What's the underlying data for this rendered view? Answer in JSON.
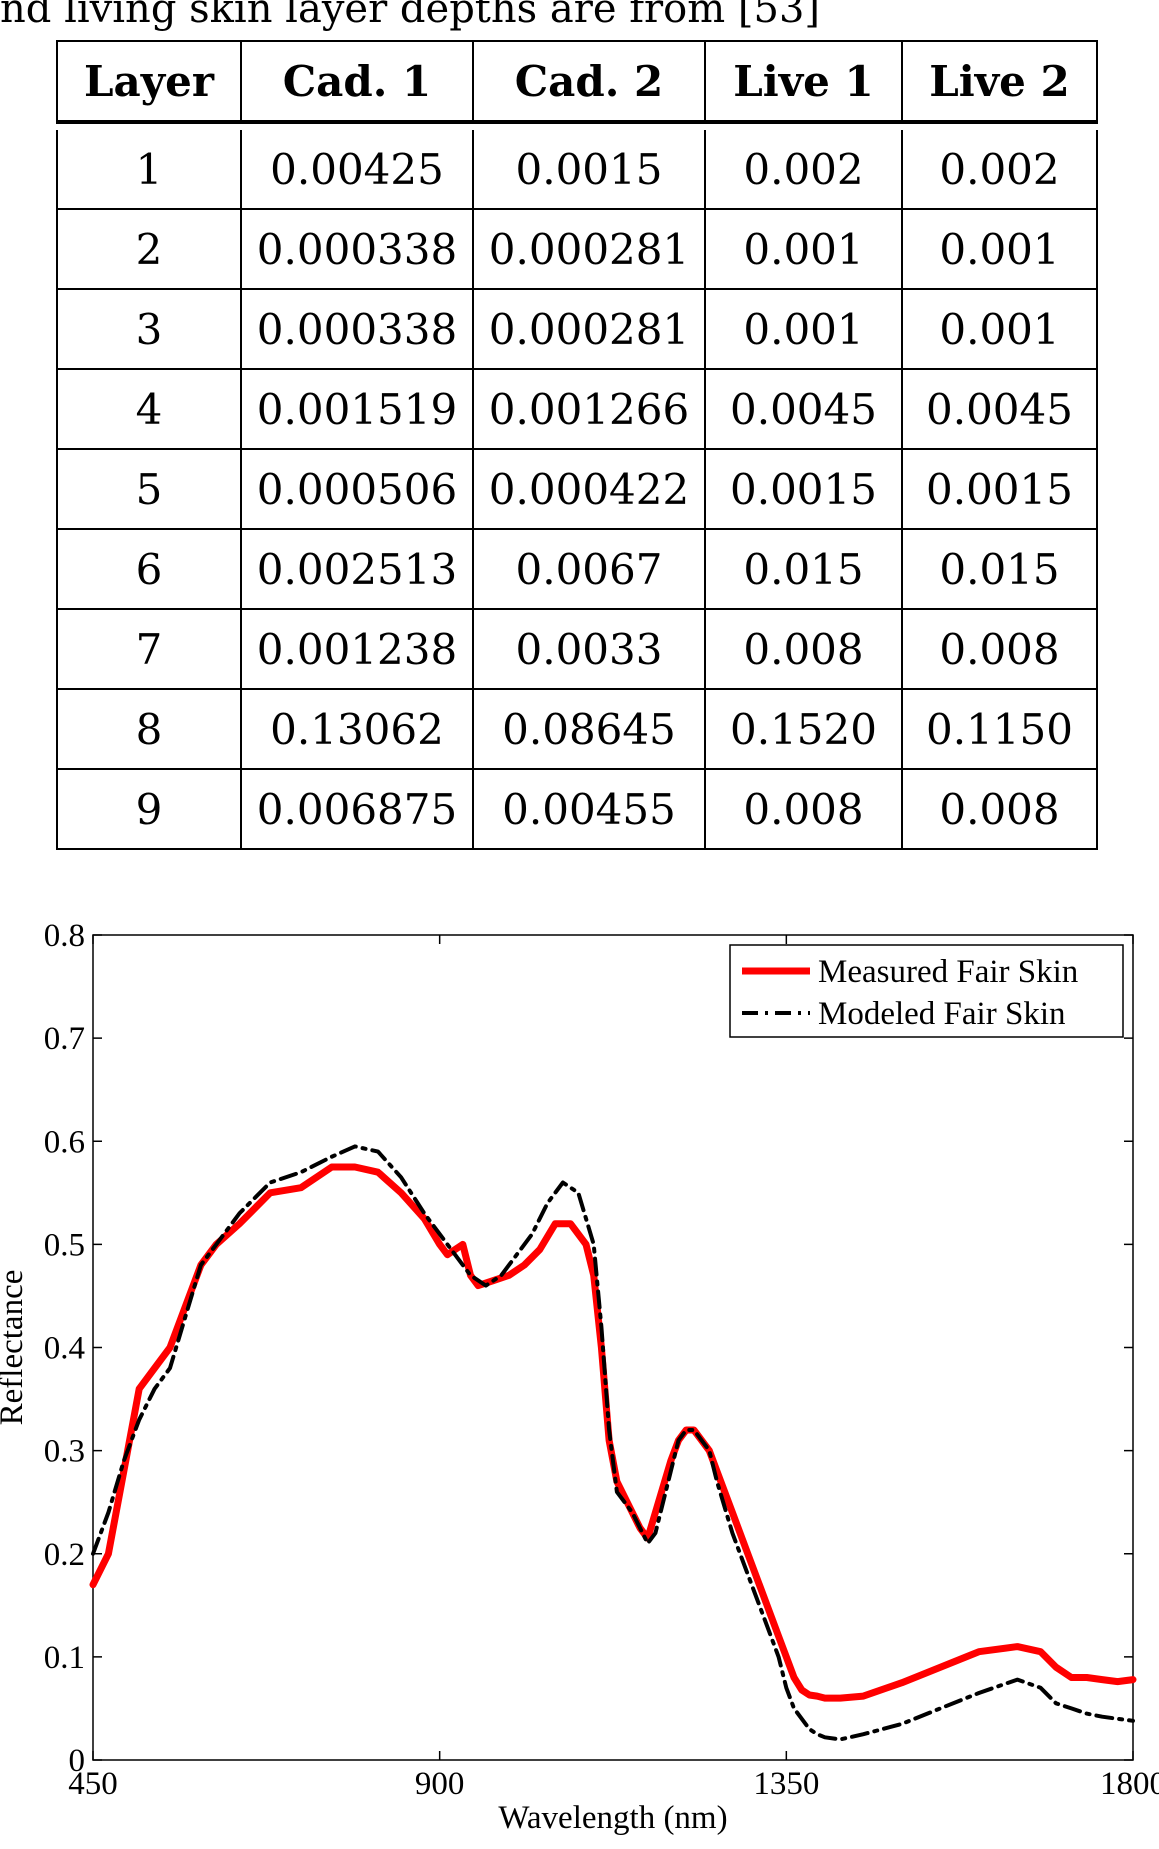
{
  "caption": "nd living skin layer depths are from [53]",
  "table": {
    "headers": [
      "Layer",
      "Cad. 1",
      "Cad. 2",
      "Live 1",
      "Live 2"
    ],
    "rows": [
      [
        "1",
        "0.00425",
        "0.0015",
        "0.002",
        "0.002"
      ],
      [
        "2",
        "0.000338",
        "0.000281",
        "0.001",
        "0.001"
      ],
      [
        "3",
        "0.000338",
        "0.000281",
        "0.001",
        "0.001"
      ],
      [
        "4",
        "0.001519",
        "0.001266",
        "0.0045",
        "0.0045"
      ],
      [
        "5",
        "0.000506",
        "0.000422",
        "0.0015",
        "0.0015"
      ],
      [
        "6",
        "0.002513",
        "0.0067",
        "0.015",
        "0.015"
      ],
      [
        "7",
        "0.001238",
        "0.0033",
        "0.008",
        "0.008"
      ],
      [
        "8",
        "0.13062",
        "0.08645",
        "0.1520",
        "0.1150"
      ],
      [
        "9",
        "0.006875",
        "0.00455",
        "0.008",
        "0.008"
      ]
    ]
  },
  "chart_data": {
    "type": "line",
    "title": "",
    "xlabel": "Wavelength (nm)",
    "ylabel": "Reflectance",
    "xlim": [
      450,
      1800
    ],
    "ylim": [
      0,
      0.8
    ],
    "xticks": [
      450,
      900,
      1350,
      1800
    ],
    "yticks": [
      0,
      0.1,
      0.2,
      0.3,
      0.4,
      0.5,
      0.6,
      0.7,
      0.8
    ],
    "yticklabels": [
      "0",
      "0.1",
      "0.2",
      "0.3",
      "0.4",
      "0.5",
      "0.6",
      "0.7",
      "0.8"
    ],
    "grid": false,
    "legend": "top-right",
    "series": [
      {
        "name": "Measured Fair Skin",
        "color": "#ff0000",
        "style": "solid",
        "x": [
          450,
          470,
          490,
          510,
          530,
          550,
          570,
          590,
          610,
          640,
          680,
          720,
          760,
          790,
          820,
          850,
          880,
          900,
          910,
          930,
          940,
          950,
          970,
          990,
          1010,
          1030,
          1050,
          1070,
          1090,
          1100,
          1110,
          1120,
          1130,
          1150,
          1160,
          1170,
          1180,
          1200,
          1210,
          1220,
          1230,
          1250,
          1260,
          1280,
          1300,
          1320,
          1340,
          1350,
          1360,
          1370,
          1380,
          1390,
          1400,
          1420,
          1450,
          1500,
          1550,
          1600,
          1650,
          1680,
          1700,
          1720,
          1740,
          1760,
          1780,
          1800
        ],
        "y": [
          0.17,
          0.2,
          0.28,
          0.36,
          0.38,
          0.4,
          0.44,
          0.48,
          0.5,
          0.52,
          0.55,
          0.555,
          0.575,
          0.575,
          0.57,
          0.55,
          0.525,
          0.5,
          0.49,
          0.5,
          0.47,
          0.46,
          0.465,
          0.47,
          0.48,
          0.495,
          0.52,
          0.52,
          0.5,
          0.47,
          0.4,
          0.31,
          0.27,
          0.24,
          0.225,
          0.215,
          0.24,
          0.29,
          0.31,
          0.32,
          0.32,
          0.3,
          0.28,
          0.24,
          0.2,
          0.16,
          0.12,
          0.1,
          0.08,
          0.068,
          0.063,
          0.062,
          0.06,
          0.06,
          0.062,
          0.075,
          0.09,
          0.105,
          0.11,
          0.105,
          0.09,
          0.08,
          0.08,
          0.078,
          0.076,
          0.078
        ]
      },
      {
        "name": "Modeled Fair Skin",
        "color": "#000000",
        "style": "dashdot",
        "x": [
          450,
          470,
          490,
          510,
          530,
          550,
          570,
          590,
          610,
          640,
          680,
          720,
          760,
          790,
          820,
          850,
          880,
          900,
          920,
          940,
          960,
          980,
          1000,
          1020,
          1040,
          1060,
          1080,
          1100,
          1110,
          1120,
          1130,
          1150,
          1170,
          1180,
          1200,
          1210,
          1220,
          1230,
          1250,
          1260,
          1280,
          1300,
          1320,
          1340,
          1350,
          1360,
          1380,
          1390,
          1400,
          1420,
          1450,
          1500,
          1550,
          1600,
          1650,
          1680,
          1700,
          1720,
          1740,
          1760,
          1780,
          1800
        ],
        "y": [
          0.2,
          0.24,
          0.29,
          0.33,
          0.36,
          0.38,
          0.43,
          0.48,
          0.5,
          0.53,
          0.56,
          0.57,
          0.585,
          0.595,
          0.59,
          0.565,
          0.53,
          0.51,
          0.49,
          0.47,
          0.46,
          0.47,
          0.49,
          0.51,
          0.54,
          0.56,
          0.55,
          0.5,
          0.42,
          0.32,
          0.26,
          0.24,
          0.21,
          0.22,
          0.28,
          0.31,
          0.32,
          0.32,
          0.3,
          0.27,
          0.22,
          0.18,
          0.14,
          0.1,
          0.07,
          0.05,
          0.03,
          0.025,
          0.022,
          0.02,
          0.025,
          0.035,
          0.05,
          0.065,
          0.078,
          0.07,
          0.055,
          0.05,
          0.045,
          0.042,
          0.04,
          0.038
        ]
      }
    ]
  }
}
